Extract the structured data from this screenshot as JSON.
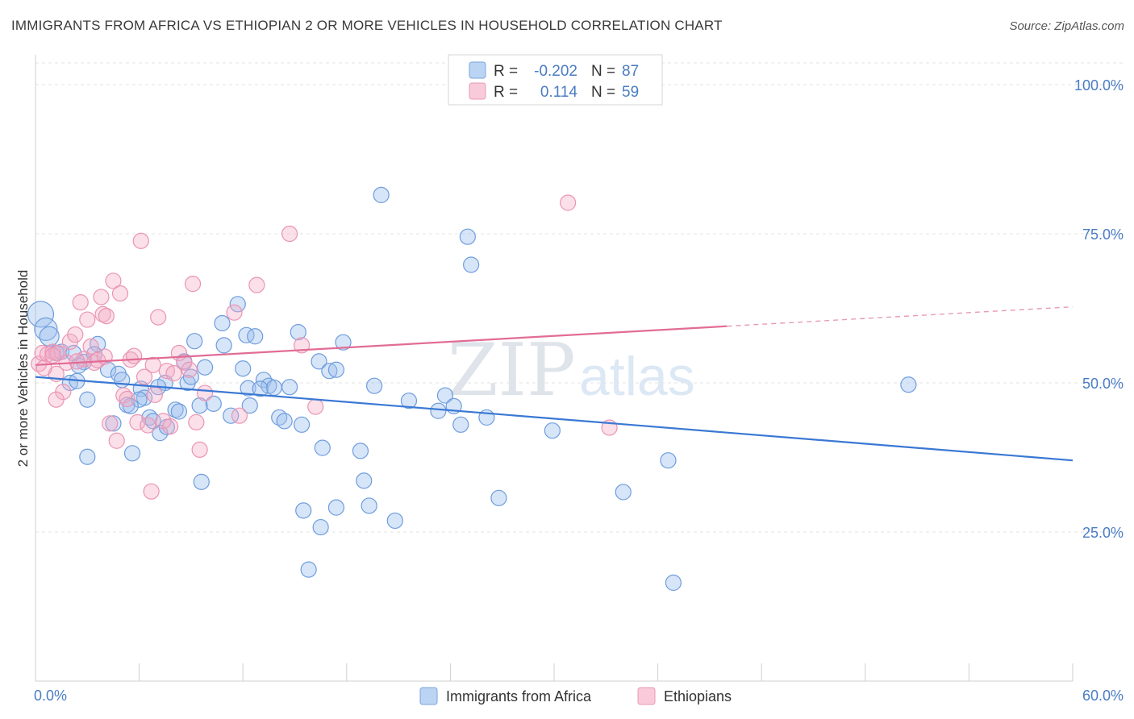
{
  "header": {
    "title": "IMMIGRANTS FROM AFRICA VS ETHIOPIAN 2 OR MORE VEHICLES IN HOUSEHOLD CORRELATION CHART",
    "source": "Source: ZipAtlas.com"
  },
  "watermark": {
    "zip": "ZIP",
    "atlas": "atlas"
  },
  "legend": {
    "rows": [
      {
        "r_label": "R =",
        "r_value": "-0.202",
        "n_label": "N =",
        "n_value": "87",
        "color": "#5b8fd6"
      },
      {
        "r_label": "R =",
        "r_value": "0.114",
        "n_label": "N =",
        "n_value": "59",
        "color": "#e986a8"
      }
    ]
  },
  "chart_data": {
    "type": "scatter",
    "title": "IMMIGRANTS FROM AFRICA VS ETHIOPIAN 2 OR MORE VEHICLES IN HOUSEHOLD CORRELATION CHART",
    "xlabel": "",
    "ylabel": "2 or more Vehicles in Household",
    "xlim": [
      0,
      60
    ],
    "ylim": [
      0,
      105
    ],
    "x_tick_labels": {
      "min": "0.0%",
      "max": "60.0%"
    },
    "y_tick_labels": [
      {
        "value": 100,
        "label": "100.0%"
      },
      {
        "value": 75,
        "label": "75.0%"
      },
      {
        "value": 50,
        "label": "50.0%"
      },
      {
        "value": 25,
        "label": "25.0%"
      }
    ],
    "grid": true,
    "legend_position": "top-center",
    "series": [
      {
        "name": "Immigrants from Africa",
        "color": "#5b8fd6",
        "trend": {
          "x": [
            0,
            60
          ],
          "y": [
            51,
            37
          ]
        },
        "points": [
          [
            0.3,
            61.5
          ],
          [
            0.6,
            59.0
          ],
          [
            0.8,
            57.8
          ],
          [
            1.2,
            55.0
          ],
          [
            1.5,
            55.2
          ],
          [
            2.2,
            55.0
          ],
          [
            2.0,
            50.0
          ],
          [
            2.4,
            50.3
          ],
          [
            3.0,
            47.2
          ],
          [
            3.6,
            56.5
          ],
          [
            3.4,
            54.8
          ],
          [
            2.8,
            53.5
          ],
          [
            4.2,
            52.2
          ],
          [
            4.8,
            51.5
          ],
          [
            5.0,
            50.5
          ],
          [
            4.5,
            43.2
          ],
          [
            5.3,
            46.3
          ],
          [
            6.1,
            49.0
          ],
          [
            6.3,
            47.5
          ],
          [
            6.6,
            44.2
          ],
          [
            6.8,
            43.6
          ],
          [
            5.6,
            38.2
          ],
          [
            7.5,
            50.0
          ],
          [
            7.2,
            41.6
          ],
          [
            7.6,
            42.6
          ],
          [
            8.1,
            45.5
          ],
          [
            8.6,
            53.6
          ],
          [
            8.8,
            50.0
          ],
          [
            9.0,
            51.0
          ],
          [
            9.2,
            57.0
          ],
          [
            9.5,
            46.2
          ],
          [
            9.8,
            52.6
          ],
          [
            10.3,
            46.5
          ],
          [
            10.8,
            60.0
          ],
          [
            10.9,
            56.3
          ],
          [
            11.3,
            44.5
          ],
          [
            11.7,
            63.2
          ],
          [
            12.0,
            52.4
          ],
          [
            12.2,
            58.0
          ],
          [
            12.4,
            46.2
          ],
          [
            12.7,
            57.8
          ],
          [
            13.2,
            50.5
          ],
          [
            13.5,
            49.5
          ],
          [
            13.8,
            49.2
          ],
          [
            14.1,
            44.2
          ],
          [
            14.4,
            43.6
          ],
          [
            14.7,
            49.3
          ],
          [
            15.2,
            58.5
          ],
          [
            15.4,
            43.0
          ],
          [
            16.4,
            53.6
          ],
          [
            16.6,
            39.1
          ],
          [
            17.0,
            52.0
          ],
          [
            17.4,
            52.2
          ],
          [
            17.8,
            56.8
          ],
          [
            18.8,
            38.6
          ],
          [
            19.0,
            33.6
          ],
          [
            19.6,
            49.5
          ],
          [
            19.3,
            29.4
          ],
          [
            20.0,
            81.5
          ],
          [
            20.8,
            26.9
          ],
          [
            21.6,
            47.0
          ],
          [
            23.3,
            45.3
          ],
          [
            23.7,
            47.9
          ],
          [
            24.2,
            46.1
          ],
          [
            24.6,
            43.0
          ],
          [
            25.0,
            74.5
          ],
          [
            25.2,
            69.8
          ],
          [
            26.1,
            44.2
          ],
          [
            26.8,
            30.7
          ],
          [
            29.9,
            42.0
          ],
          [
            34.0,
            31.7
          ],
          [
            36.6,
            37.0
          ],
          [
            36.9,
            16.5
          ],
          [
            50.5,
            49.7
          ],
          [
            3.0,
            37.6
          ],
          [
            9.6,
            33.4
          ],
          [
            15.8,
            18.7
          ],
          [
            15.5,
            28.6
          ],
          [
            16.5,
            25.8
          ],
          [
            17.4,
            29.1
          ],
          [
            12.3,
            49.1
          ],
          [
            6.0,
            47.2
          ],
          [
            5.5,
            46.1
          ],
          [
            7.1,
            49.3
          ],
          [
            2.5,
            52.9
          ],
          [
            13.0,
            49.0
          ],
          [
            8.3,
            45.2
          ]
        ]
      },
      {
        "name": "Ethiopians",
        "color": "#e986a8",
        "trend": {
          "x": [
            0,
            40
          ],
          "y": [
            53,
            59.5
          ]
        },
        "points": [
          [
            0.2,
            53.2
          ],
          [
            0.4,
            55.0
          ],
          [
            0.7,
            54.8
          ],
          [
            1.0,
            55.2
          ],
          [
            1.3,
            55.0
          ],
          [
            1.2,
            51.5
          ],
          [
            1.6,
            48.5
          ],
          [
            1.2,
            47.2
          ],
          [
            1.8,
            53.4
          ],
          [
            2.0,
            56.9
          ],
          [
            2.3,
            58.1
          ],
          [
            2.6,
            63.5
          ],
          [
            2.8,
            54.0
          ],
          [
            3.0,
            60.6
          ],
          [
            3.2,
            56.1
          ],
          [
            3.4,
            53.4
          ],
          [
            3.6,
            53.8
          ],
          [
            3.8,
            64.4
          ],
          [
            3.9,
            61.5
          ],
          [
            4.1,
            61.2
          ],
          [
            4.3,
            43.2
          ],
          [
            4.5,
            67.1
          ],
          [
            4.7,
            40.3
          ],
          [
            4.9,
            65.0
          ],
          [
            5.1,
            47.9
          ],
          [
            5.3,
            47.3
          ],
          [
            5.5,
            53.9
          ],
          [
            5.7,
            54.5
          ],
          [
            5.9,
            43.4
          ],
          [
            6.1,
            73.8
          ],
          [
            6.3,
            51.0
          ],
          [
            6.5,
            42.9
          ],
          [
            6.7,
            31.8
          ],
          [
            6.9,
            48.0
          ],
          [
            7.1,
            61.0
          ],
          [
            7.4,
            43.6
          ],
          [
            7.6,
            52.0
          ],
          [
            7.8,
            42.7
          ],
          [
            8.0,
            51.6
          ],
          [
            8.3,
            55.0
          ],
          [
            8.6,
            53.4
          ],
          [
            8.9,
            52.2
          ],
          [
            9.1,
            66.6
          ],
          [
            9.3,
            43.4
          ],
          [
            9.5,
            38.8
          ],
          [
            9.8,
            48.3
          ],
          [
            11.5,
            61.8
          ],
          [
            11.8,
            44.5
          ],
          [
            12.8,
            66.4
          ],
          [
            14.7,
            75.0
          ],
          [
            15.4,
            56.3
          ],
          [
            16.2,
            46.0
          ],
          [
            30.8,
            80.2
          ],
          [
            33.2,
            42.5
          ],
          [
            0.5,
            52.5
          ],
          [
            2.4,
            53.6
          ],
          [
            4.0,
            54.4
          ],
          [
            6.8,
            53.0
          ],
          [
            1.0,
            54.6
          ]
        ]
      }
    ],
    "bottom_legend": [
      "Immigrants from Africa",
      "Ethiopians"
    ]
  }
}
